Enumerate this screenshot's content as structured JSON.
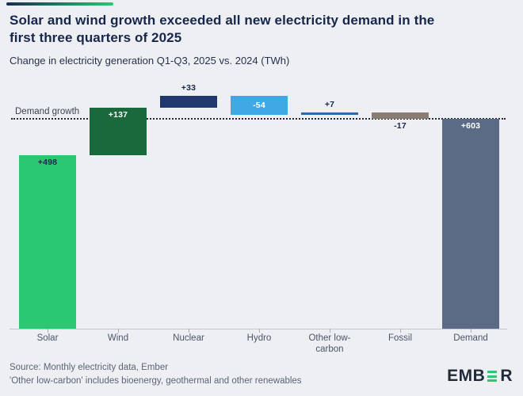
{
  "header": {
    "title_line1": "Solar and wind growth exceeded all new electricity demand in the",
    "title_line2": "first three quarters of 2025",
    "subtitle": "Change in electricity generation Q1-Q3, 2025 vs. 2024 (TWh)"
  },
  "chart_data": {
    "type": "bar",
    "subtype": "waterfall",
    "unit": "TWh",
    "title": "Change in electricity generation Q1-Q3, 2025 vs. 2024 (TWh)",
    "reference_line": {
      "label": "Demand growth",
      "value": 603
    },
    "categories": [
      "Solar",
      "Wind",
      "Nuclear",
      "Hydro",
      "Other low-carbon",
      "Fossil",
      "Demand"
    ],
    "values": [
      498,
      137,
      33,
      -54,
      7,
      -17,
      603
    ],
    "bars": [
      {
        "category": "Solar",
        "value": 498,
        "label": "+498",
        "color": "#2BC873",
        "kind": "delta",
        "label_pos": "inside-top",
        "label_color": "#17264B"
      },
      {
        "category": "Wind",
        "value": 137,
        "label": "+137",
        "color": "#19693C",
        "kind": "delta",
        "label_pos": "inside-top",
        "label_color": "#FFFFFF"
      },
      {
        "category": "Nuclear",
        "value": 33,
        "label": "+33",
        "color": "#21386E",
        "kind": "delta",
        "label_pos": "above",
        "label_color": "#17264B"
      },
      {
        "category": "Hydro",
        "value": -54,
        "label": "-54",
        "color": "#3FA9E6",
        "kind": "delta",
        "label_pos": "inside-center",
        "label_color": "#FFFFFF"
      },
      {
        "category": "Other low-carbon",
        "value": 7,
        "label": "+7",
        "color": "#2A6CA9",
        "kind": "delta",
        "label_pos": "above",
        "label_color": "#17264B"
      },
      {
        "category": "Fossil",
        "value": -17,
        "label": "-17",
        "color": "#8B7D72",
        "kind": "delta",
        "label_pos": "below",
        "label_color": "#17264B"
      },
      {
        "category": "Demand",
        "value": 603,
        "label": "+603",
        "color": "#5B6B85",
        "kind": "total",
        "label_pos": "inside-top",
        "label_color": "#FFFFFF"
      }
    ],
    "axis": {
      "baseline_value": 0,
      "ylim": [
        0,
        668
      ],
      "grid": false,
      "legend": false
    }
  },
  "footer": {
    "source_line1": "Source: Monthly electricity data, Ember",
    "source_line2": "'Other low-carbon' includes bioenergy, geothermal and other renewables",
    "logo_prefix": "EMB",
    "logo_suffix": "R"
  },
  "colors": {
    "background": "#EEEFF3",
    "title_navy": "#17264B",
    "accent_navy": "#1B2B4D",
    "accent_green": "#2BC873",
    "axis_line": "#C2C7D1",
    "axis_label": "#49556B",
    "source_text": "#5A6477",
    "dotted_line": "#20262E"
  }
}
